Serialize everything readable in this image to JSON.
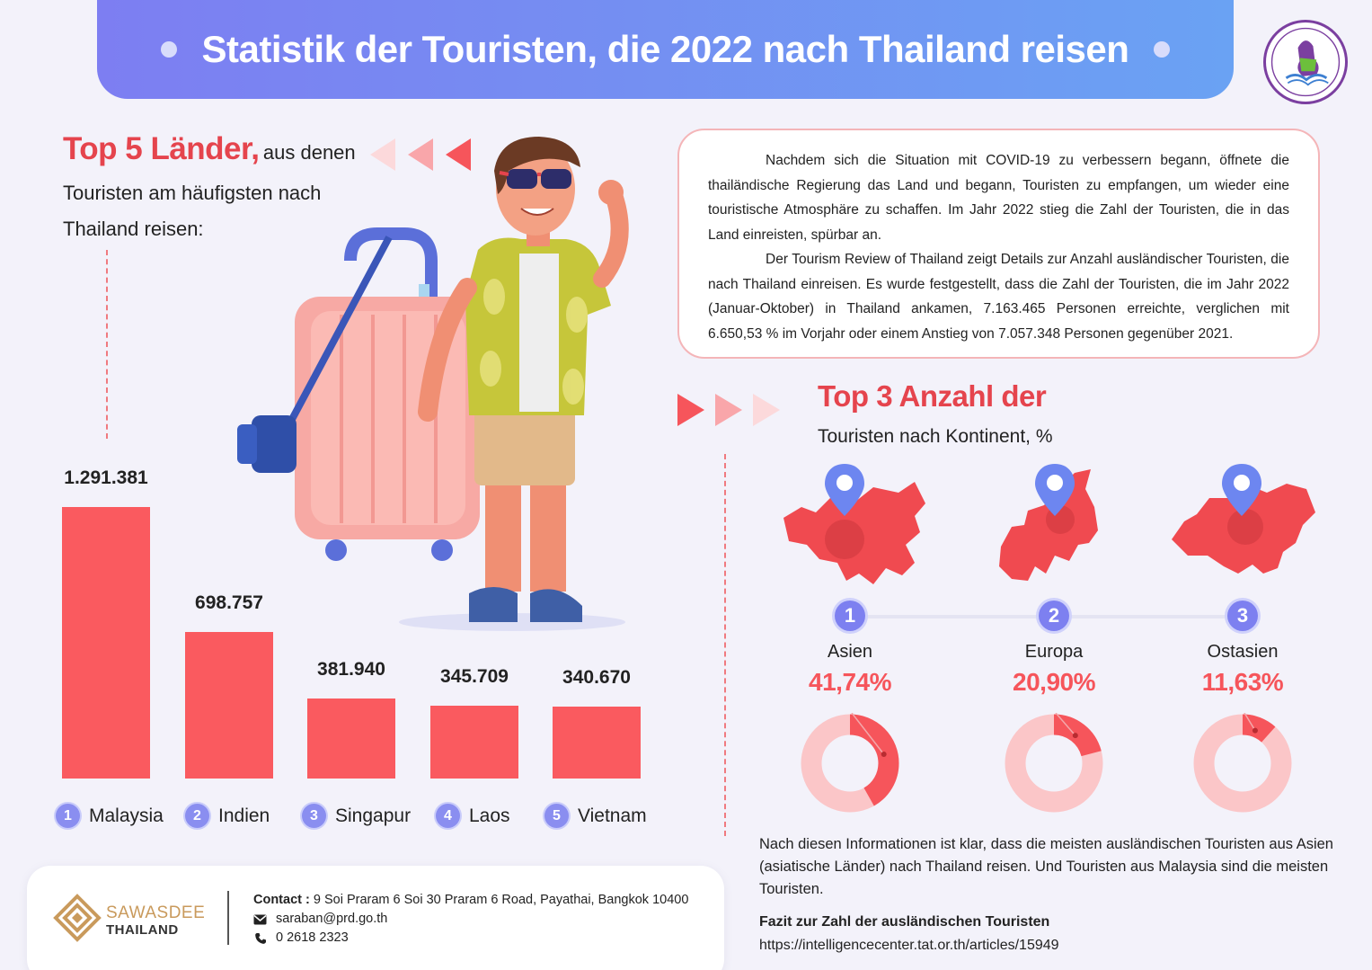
{
  "header": {
    "title": "Statistik der Touristen, die 2022 nach Thailand reisen"
  },
  "left": {
    "heading_big": "Top 5 Länder,",
    "heading_small": "aus denen",
    "heading_line2": "Touristen am häufigsten nach",
    "heading_line3": "Thailand reisen:"
  },
  "intro": {
    "p1": "Nachdem sich die Situation mit COVID-19 zu verbessern begann, öffnete die thailändische Regierung das Land und begann, Touristen zu empfangen, um wieder eine touristische Atmosphäre zu schaffen. Im Jahr 2022 stieg die Zahl der Touristen, die in das Land einreisten, spürbar an.",
    "p2": "Der Tourism Review of Thailand zeigt Details zur Anzahl ausländischer Touristen, die nach Thailand einreisen. Es wurde festgestellt, dass die Zahl der Touristen, die im Jahr 2022 (Januar-Oktober) in Thailand ankamen, 7.163.465 Personen erreichte, verglichen mit 6.650,53 % im Vorjahr oder einem Anstieg von 7.057.348 Personen gegenüber 2021."
  },
  "right": {
    "heading_big": "Top 3 Anzahl der",
    "heading_sub": "Touristen nach Kontinent, %"
  },
  "chart_data": [
    {
      "type": "bar",
      "categories": [
        "Malaysia",
        "Indien",
        "Singapur",
        "Laos",
        "Vietnam"
      ],
      "ranks": [
        "1",
        "2",
        "3",
        "4",
        "5"
      ],
      "values": [
        1291381,
        698757,
        381940,
        345709,
        340670
      ],
      "value_labels": [
        "1.291.381",
        "698.757",
        "381.940",
        "345.709",
        "340.670"
      ],
      "color": "#fa5a5f"
    },
    {
      "type": "pie",
      "categories": [
        "Asien",
        "Europa",
        "Ostasien"
      ],
      "ranks": [
        "1",
        "2",
        "3"
      ],
      "values": [
        41.74,
        20.9,
        11.63
      ],
      "value_labels": [
        "41,74%",
        "20,90%",
        "11,63%"
      ],
      "colors": {
        "slice": "#f6555b",
        "rest": "#fbc6c8"
      }
    }
  ],
  "conclusion": "Nach diesen Informationen ist klar, dass die meisten ausländischen Touristen aus Asien (asiatische Länder) nach Thailand reisen. Und Touristen aus Malaysia sind die meisten Touristen.",
  "source": {
    "label": "Fazit zur Zahl der ausländischen Touristen",
    "url": "https://intelligencecenter.tat.or.th/articles/15949"
  },
  "footer": {
    "brand_line1": "SAWASDEE",
    "brand_line2": "THAILAND",
    "contact_label": "Contact :",
    "address": "9 Soi Praram 6 Soi 30 Praram 6 Road, Payathai, Bangkok 10400",
    "email": "saraban@prd.go.th",
    "phone": "0 2618 2323",
    "icons": [
      "mail-icon",
      "phone-icon"
    ]
  }
}
